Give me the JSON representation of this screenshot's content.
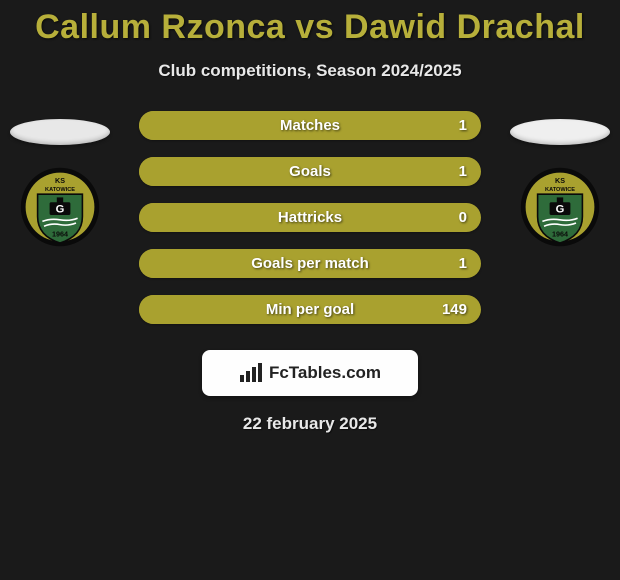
{
  "title": "Callum Rzonca vs Dawid Drachal",
  "subtitle": "Club competitions, Season 2024/2025",
  "colors": {
    "accent": "#a9a12f",
    "title": "#b7af3a",
    "bg": "#1a1a1a",
    "text_light": "#e8e8e8",
    "white": "#ffffff",
    "logo_bg": "#fefefe",
    "logo_text": "#222222",
    "left_ellipse": "#e8e8e8",
    "right_ellipse": "#efefef",
    "badge_outer": "#0a0a0a",
    "badge_ring": "#a9a12f",
    "badge_green": "#2e6b3a",
    "badge_text": "#0a0a0a"
  },
  "badge": {
    "top_text": "KS",
    "mid_text": "KATOWICE",
    "year": "1964",
    "letter": "G"
  },
  "stats": [
    {
      "label": "Matches",
      "value": "1"
    },
    {
      "label": "Goals",
      "value": "1"
    },
    {
      "label": "Hattricks",
      "value": "0"
    },
    {
      "label": "Goals per match",
      "value": "1"
    },
    {
      "label": "Min per goal",
      "value": "149"
    }
  ],
  "logo": {
    "text": "FcTables.com"
  },
  "date": "22 february 2025"
}
